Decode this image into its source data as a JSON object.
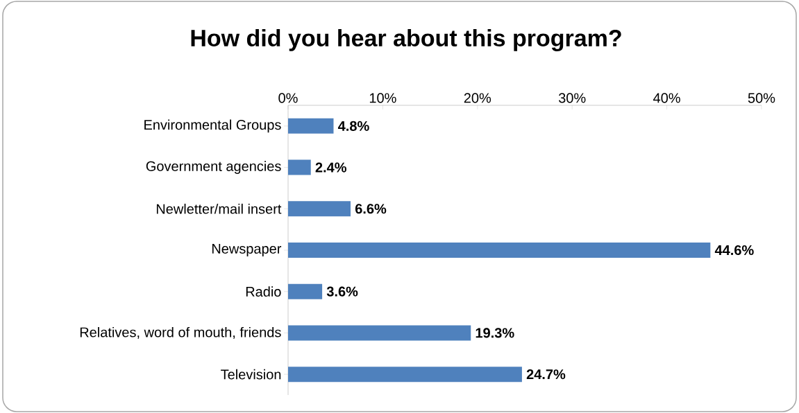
{
  "chart_data": {
    "type": "bar",
    "orientation": "horizontal",
    "title": "How did you hear about this program?",
    "categories": [
      "Environmental Groups",
      "Government agencies",
      "Newletter/mail insert",
      "Newspaper",
      "Radio",
      "Relatives, word of mouth, friends",
      "Television"
    ],
    "values": [
      4.8,
      2.4,
      6.6,
      44.6,
      3.6,
      19.3,
      24.7
    ],
    "value_labels": [
      "4.8%",
      "2.4%",
      "6.6%",
      "44.6%",
      "3.6%",
      "19.3%",
      "24.7%"
    ],
    "color": "#4f81bd",
    "xlim": [
      0,
      50
    ],
    "xticks": [
      {
        "value": 0,
        "label": "0%"
      },
      {
        "value": 10,
        "label": "10%"
      },
      {
        "value": 20,
        "label": "20%"
      },
      {
        "value": 30,
        "label": "30%"
      },
      {
        "value": 40,
        "label": "40%"
      },
      {
        "value": 50,
        "label": "50%"
      }
    ]
  }
}
